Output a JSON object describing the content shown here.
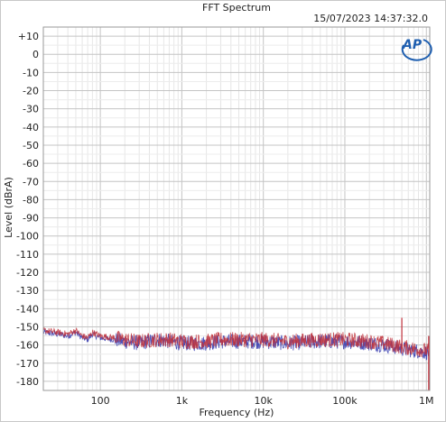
{
  "chart_data": {
    "type": "line",
    "title": "FFT Spectrum",
    "timestamp": "15/07/2023 14:37:32.0",
    "logo": "AP",
    "xlabel": "Frequency (Hz)",
    "ylabel": "Level (dBrA)",
    "xscale": "log",
    "xlim": [
      20,
      1100000
    ],
    "ylim": [
      -185,
      15
    ],
    "grid": true,
    "x_ticks": [
      {
        "value": 100,
        "label": "100"
      },
      {
        "value": 1000,
        "label": "1k"
      },
      {
        "value": 10000,
        "label": "10k"
      },
      {
        "value": 100000,
        "label": "100k"
      },
      {
        "value": 1000000,
        "label": "1M"
      }
    ],
    "y_ticks": [
      {
        "value": 10,
        "label": "+10"
      },
      {
        "value": 0,
        "label": "0"
      },
      {
        "value": -10,
        "label": "-10"
      },
      {
        "value": -20,
        "label": "-20"
      },
      {
        "value": -30,
        "label": "-30"
      },
      {
        "value": -40,
        "label": "-40"
      },
      {
        "value": -50,
        "label": "-50"
      },
      {
        "value": -60,
        "label": "-60"
      },
      {
        "value": -70,
        "label": "-70"
      },
      {
        "value": -80,
        "label": "-80"
      },
      {
        "value": -90,
        "label": "-90"
      },
      {
        "value": -100,
        "label": "-100"
      },
      {
        "value": -110,
        "label": "-110"
      },
      {
        "value": -120,
        "label": "-120"
      },
      {
        "value": -130,
        "label": "-130"
      },
      {
        "value": -140,
        "label": "-140"
      },
      {
        "value": -150,
        "label": "-150"
      },
      {
        "value": -160,
        "label": "-160"
      },
      {
        "value": -170,
        "label": "-170"
      },
      {
        "value": -180,
        "label": "-180"
      }
    ],
    "series": [
      {
        "color": "#3b3fb0",
        "x": [
          20,
          30,
          40,
          50,
          60,
          70,
          80,
          100,
          150,
          200,
          300,
          500,
          700,
          1000,
          2000,
          3000,
          5000,
          10000,
          20000,
          50000,
          100000,
          200000,
          300000,
          400000,
          500000,
          700000,
          1000000
        ],
        "values": [
          -153,
          -154,
          -155,
          -153,
          -156,
          -157,
          -154,
          -156,
          -157,
          -158,
          -159,
          -157,
          -158,
          -159,
          -159,
          -158,
          -158,
          -158,
          -159,
          -158,
          -158,
          -159,
          -160,
          -161,
          -162,
          -163,
          -164
        ]
      },
      {
        "color": "#c0303a",
        "x": [
          20,
          30,
          40,
          50,
          60,
          70,
          80,
          100,
          150,
          200,
          300,
          500,
          700,
          1000,
          2000,
          3000,
          5000,
          10000,
          20000,
          50000,
          100000,
          200000,
          300000,
          400000,
          500000,
          700000,
          1000000
        ],
        "values": [
          -152,
          -153,
          -154,
          -152,
          -155,
          -156,
          -153,
          -155,
          -156,
          -157,
          -158,
          -157,
          -157,
          -158,
          -158,
          -157,
          -157,
          -157,
          -158,
          -157,
          -157,
          -158,
          -159,
          -160,
          -161,
          -162,
          -163
        ]
      }
    ],
    "spikes": [
      {
        "x": 500000,
        "value": -145
      }
    ]
  }
}
